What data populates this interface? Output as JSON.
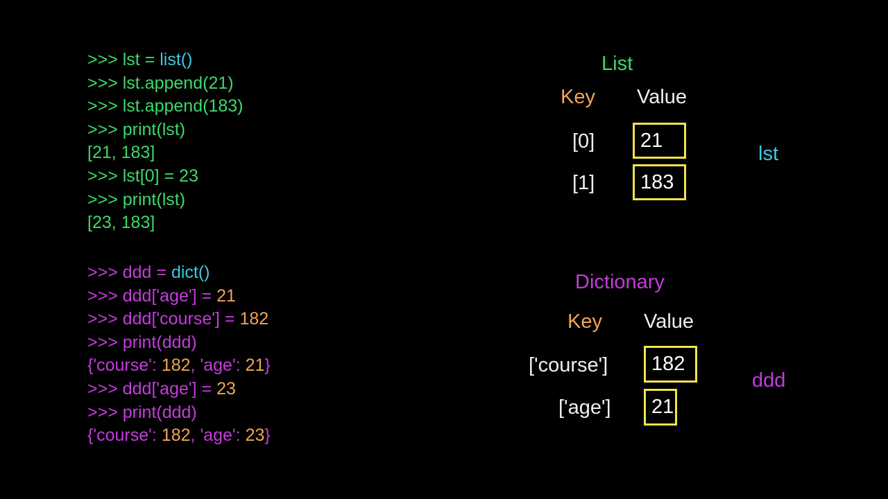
{
  "colors": {
    "prompt": "#ffffff",
    "green": "#3cd96b",
    "cyan": "#3fc7e0",
    "magenta": "#c43cdc",
    "orange": "#f0a454",
    "yellow": "#f3e44a",
    "white": "#ffffff"
  },
  "code_list": [
    [
      {
        "t": ">>> ",
        "c": "green"
      },
      {
        "t": "lst = ",
        "c": "green"
      },
      {
        "t": "list()",
        "c": "cyan"
      }
    ],
    [
      {
        "t": ">>> ",
        "c": "green"
      },
      {
        "t": "lst.append(21)",
        "c": "green"
      }
    ],
    [
      {
        "t": ">>> ",
        "c": "green"
      },
      {
        "t": "lst.append(183)",
        "c": "green"
      }
    ],
    [
      {
        "t": ">>> ",
        "c": "green"
      },
      {
        "t": "print(",
        "c": "green"
      },
      {
        "t": "lst",
        "c": "green"
      },
      {
        "t": ")",
        "c": "green"
      }
    ],
    [
      {
        "t": "[21, 183]",
        "c": "green"
      }
    ],
    [
      {
        "t": ">>> ",
        "c": "green"
      },
      {
        "t": "lst[0] = 23",
        "c": "green"
      }
    ],
    [
      {
        "t": ">>> ",
        "c": "green"
      },
      {
        "t": "print(",
        "c": "green"
      },
      {
        "t": "lst",
        "c": "green"
      },
      {
        "t": ")",
        "c": "green"
      }
    ],
    [
      {
        "t": "[23, 183]",
        "c": "green"
      }
    ]
  ],
  "code_dict": [
    [
      {
        "t": ">>> ",
        "c": "magenta"
      },
      {
        "t": "ddd = ",
        "c": "magenta"
      },
      {
        "t": "dict()",
        "c": "cyan"
      }
    ],
    [
      {
        "t": ">>> ",
        "c": "magenta"
      },
      {
        "t": "ddd['age'] = ",
        "c": "magenta"
      },
      {
        "t": "21",
        "c": "orange"
      }
    ],
    [
      {
        "t": ">>> ",
        "c": "magenta"
      },
      {
        "t": "ddd['course'] = ",
        "c": "magenta"
      },
      {
        "t": "182",
        "c": "orange"
      }
    ],
    [
      {
        "t": ">>> ",
        "c": "magenta"
      },
      {
        "t": "print(ddd)",
        "c": "magenta"
      }
    ],
    [
      {
        "t": "{'course': ",
        "c": "magenta"
      },
      {
        "t": "182",
        "c": "orange"
      },
      {
        "t": ", 'age': ",
        "c": "magenta"
      },
      {
        "t": "21",
        "c": "orange"
      },
      {
        "t": "}",
        "c": "magenta"
      }
    ],
    [
      {
        "t": ">>> ",
        "c": "magenta"
      },
      {
        "t": "ddd['age'] = ",
        "c": "magenta"
      },
      {
        "t": "23",
        "c": "orange"
      }
    ],
    [
      {
        "t": ">>> ",
        "c": "magenta"
      },
      {
        "t": "print(ddd)",
        "c": "magenta"
      }
    ],
    [
      {
        "t": "{'course': ",
        "c": "magenta"
      },
      {
        "t": "182",
        "c": "orange"
      },
      {
        "t": ", 'age': ",
        "c": "magenta"
      },
      {
        "t": "23",
        "c": "orange"
      },
      {
        "t": "}",
        "c": "magenta"
      }
    ]
  ],
  "list_diagram": {
    "title": "List",
    "key_header": "Key",
    "value_header": "Value",
    "rows": [
      {
        "key": "[0]",
        "value": "21"
      },
      {
        "key": "[1]",
        "value": "183"
      }
    ],
    "var_name": "lst"
  },
  "dict_diagram": {
    "title": "Dictionary",
    "key_header": "Key",
    "value_header": "Value",
    "rows": [
      {
        "key": "['course']",
        "value": "182"
      },
      {
        "key": "['age']",
        "value": "21"
      }
    ],
    "var_name": "ddd"
  }
}
